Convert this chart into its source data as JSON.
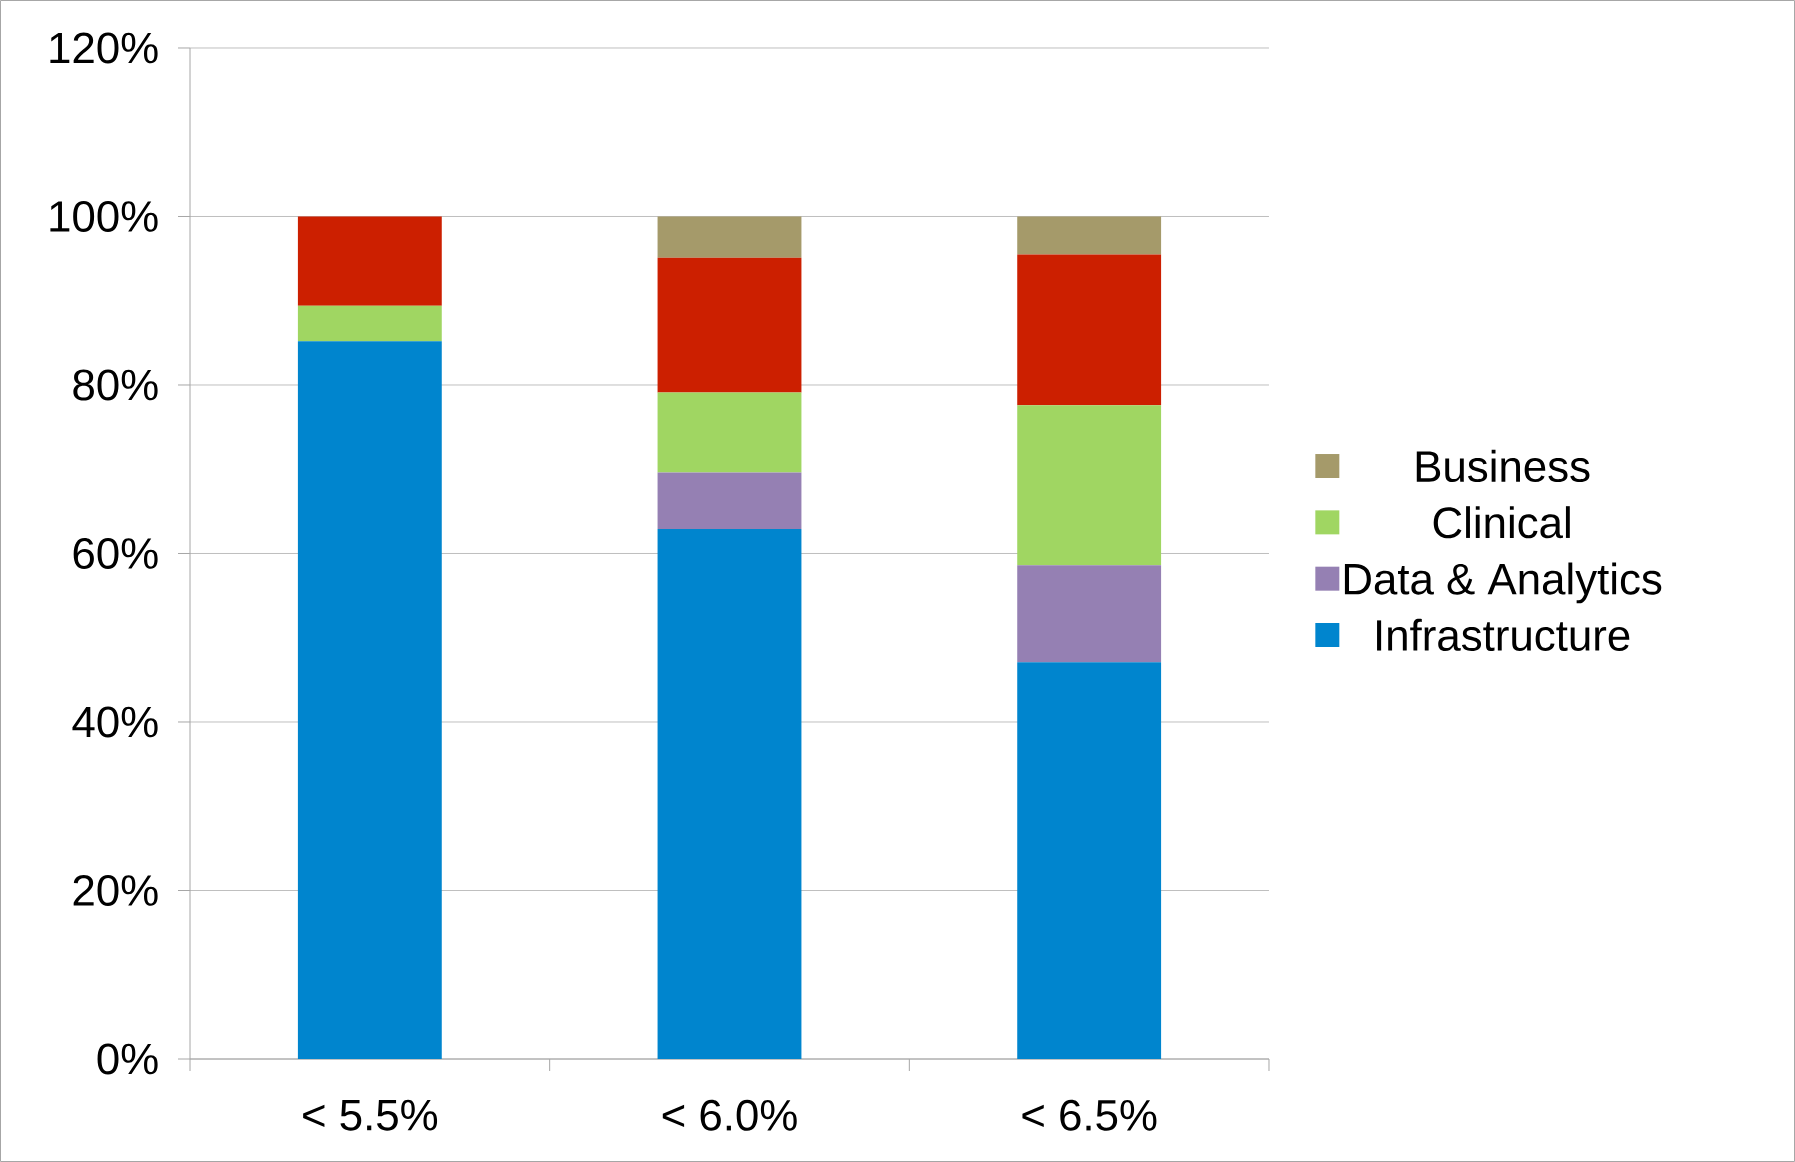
{
  "chart_data": {
    "type": "bar",
    "stacked": true,
    "categories": [
      "< 5.5%",
      "< 6.0%",
      "< 6.5%"
    ],
    "series": [
      {
        "name": "Infrastructure",
        "color": "#0085ce",
        "values": [
          85.2,
          62.9,
          47.1
        ]
      },
      {
        "name": "Data & Analytics",
        "color": "#9580b3",
        "values": [
          0,
          6.7,
          11.5
        ]
      },
      {
        "name": "Clinical",
        "color": "#a0d662",
        "values": [
          4.2,
          9.5,
          19.0
        ]
      },
      {
        "color": "#cc1f00",
        "values": [
          10.6,
          16.0,
          17.9
        ]
      },
      {
        "name": "Business",
        "color": "#a59a6a",
        "values": [
          0,
          4.9,
          4.5
        ]
      }
    ],
    "ylim": [
      0,
      120
    ],
    "yticks": [
      {
        "value": 0,
        "label": "0%"
      },
      {
        "value": 20,
        "label": "20%"
      },
      {
        "value": 40,
        "label": "40%"
      },
      {
        "value": 60,
        "label": "60%"
      },
      {
        "value": 80,
        "label": "80%"
      },
      {
        "value": 100,
        "label": "100%"
      },
      {
        "value": 120,
        "label": "120%"
      }
    ],
    "grid": "y",
    "legend": "right"
  }
}
